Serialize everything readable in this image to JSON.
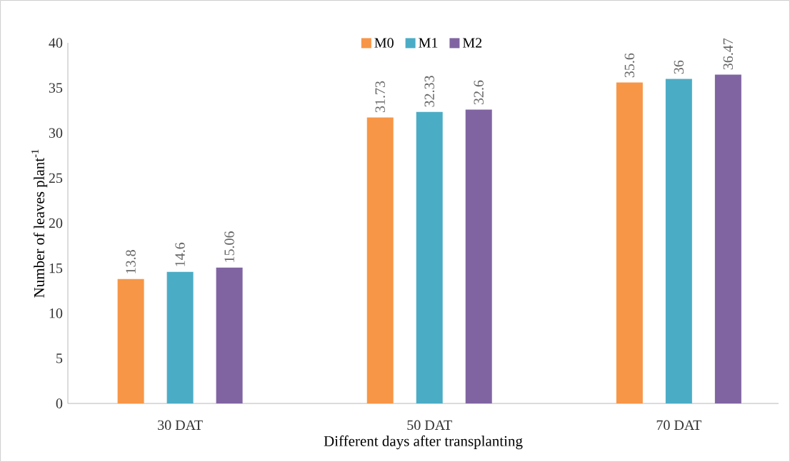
{
  "chart_data": {
    "type": "bar",
    "xlabel": "Different days after transplanting",
    "ylabel": "Number of leaves plant$^{-1}$",
    "categories": [
      "30 DAT",
      "50 DAT",
      "70 DAT"
    ],
    "series": [
      {
        "name": "M0",
        "color": "#f79646",
        "values": [
          13.8,
          31.73,
          35.6
        ]
      },
      {
        "name": "M1",
        "color": "#4bacc6",
        "values": [
          14.6,
          32.33,
          36
        ]
      },
      {
        "name": "M2",
        "color": "#8064a2",
        "values": [
          15.06,
          32.6,
          36.47
        ]
      }
    ],
    "ylim": [
      0,
      40
    ],
    "yticks": [
      0,
      5,
      10,
      15,
      20,
      25,
      30,
      35,
      40
    ],
    "data_labels": true,
    "legend": "top"
  }
}
